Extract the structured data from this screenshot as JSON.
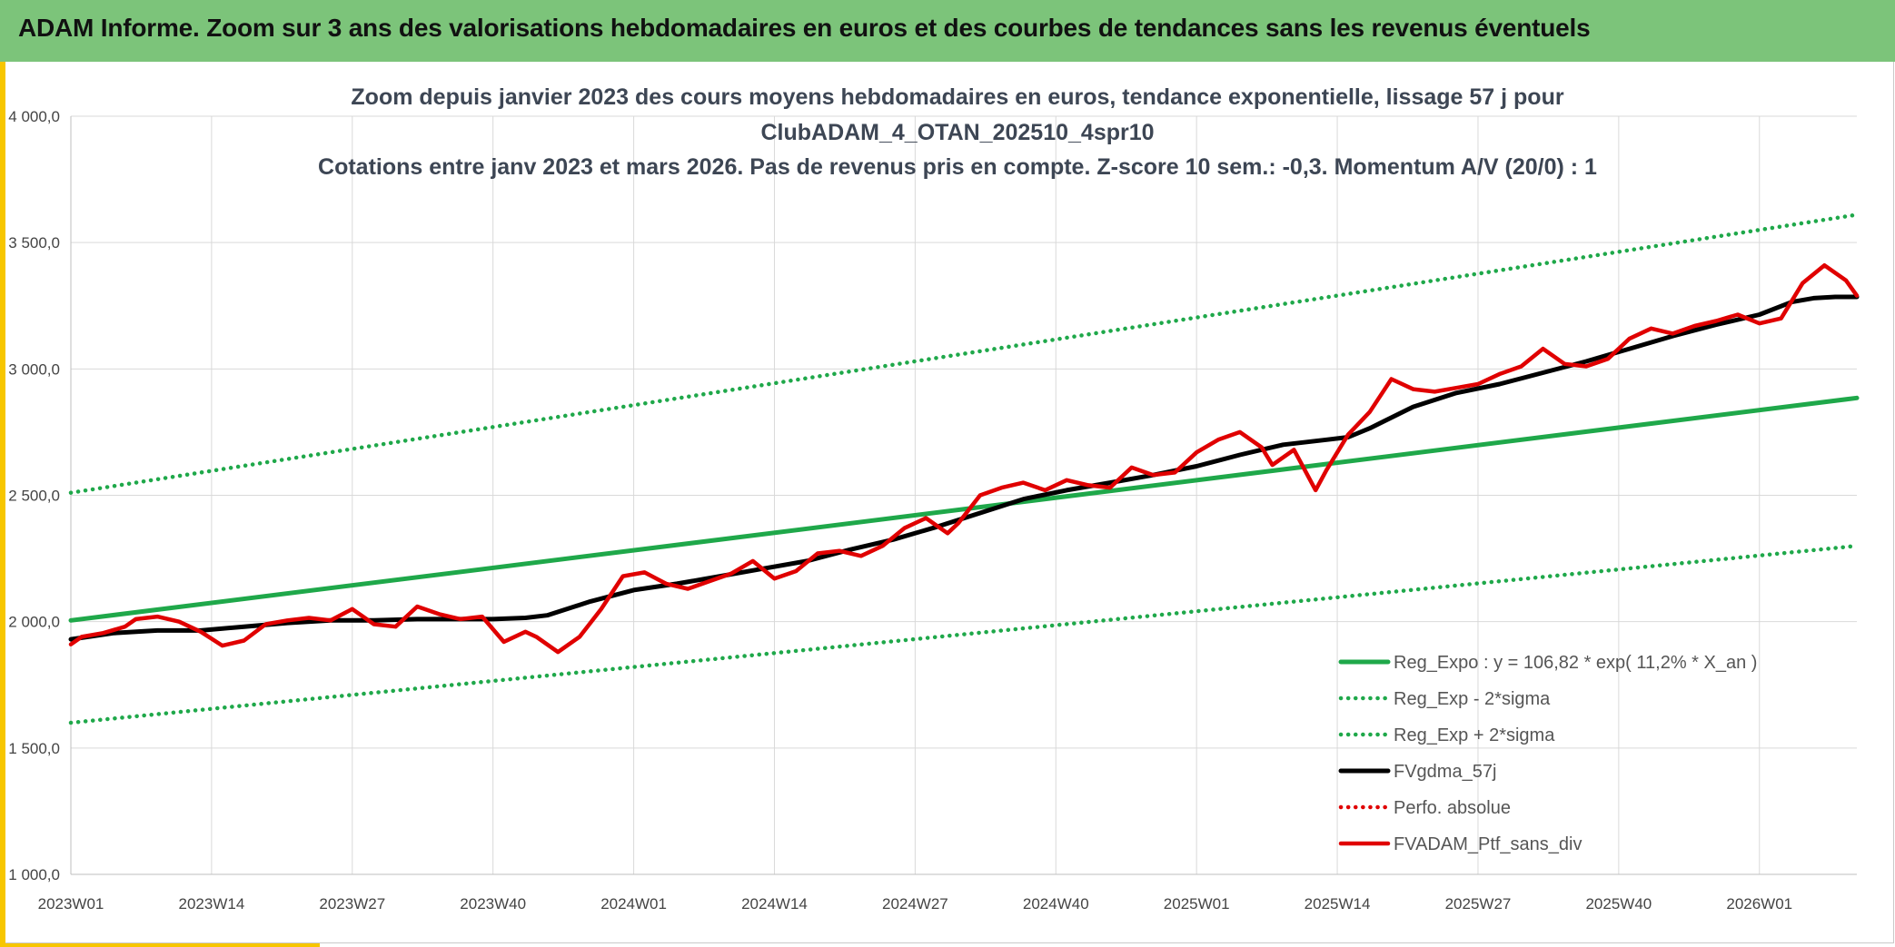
{
  "banner": {
    "title": "ADAM Informe. Zoom sur 3 ans des valorisations hebdomadaires en euros et des courbes de tendances sans les revenus éventuels"
  },
  "colors": {
    "banner_bg": "#7cc47a",
    "accent": "#f7c600",
    "trend_green": "#1fa84a",
    "portfolio_red": "#e00000",
    "moving_avg_black": "#000000",
    "grid": "#d9d9d9"
  },
  "chart_data": {
    "type": "line",
    "title_lines": [
      "Zoom depuis janvier 2023 des cours moyens hebdomadaires en euros, tendance exponentielle, lissage 57 j pour",
      "ClubADAM_4_OTAN_202510_4spr10",
      "Cotations entre janv 2023 et mars 2026. Pas de revenus pris en compte. Z-score 10 sem.: -0,3. Momentum A/V (20/0) : 1"
    ],
    "x_unit": "week index from 2023W01",
    "xlim": [
      0,
      165
    ],
    "x_ticks": [
      {
        "x": 0,
        "label": "2023W01"
      },
      {
        "x": 13,
        "label": "2023W14"
      },
      {
        "x": 26,
        "label": "2023W27"
      },
      {
        "x": 39,
        "label": "2023W40"
      },
      {
        "x": 52,
        "label": "2024W01"
      },
      {
        "x": 65,
        "label": "2024W14"
      },
      {
        "x": 78,
        "label": "2024W27"
      },
      {
        "x": 91,
        "label": "2024W40"
      },
      {
        "x": 104,
        "label": "2025W01"
      },
      {
        "x": 117,
        "label": "2025W14"
      },
      {
        "x": 130,
        "label": "2025W27"
      },
      {
        "x": 143,
        "label": "2025W40"
      },
      {
        "x": 156,
        "label": "2026W01"
      }
    ],
    "ylim": [
      1000,
      4000
    ],
    "y_ticks": [
      {
        "value": 1000,
        "label": "1 000,0"
      },
      {
        "value": 1500,
        "label": "1 500,0"
      },
      {
        "value": 2000,
        "label": "2 000,0"
      },
      {
        "value": 2500,
        "label": "2 500,0"
      },
      {
        "value": 3000,
        "label": "3 000,0"
      },
      {
        "value": 3500,
        "label": "3 500,0"
      },
      {
        "value": 4000,
        "label": "4 000,0"
      }
    ],
    "grid": true,
    "legend_position": "bottom-right",
    "series": [
      {
        "name": "Reg_Expo : y = 106,82 * exp( 11,2% *  X_an )",
        "style": "solid",
        "color": "#1fa84a",
        "x": [
          0,
          165
        ],
        "values": [
          2005,
          2885
        ]
      },
      {
        "name": "Reg_Exp - 2*sigma",
        "style": "dotted",
        "color": "#1fa84a",
        "x": [
          0,
          165
        ],
        "values": [
          1600,
          2300
        ]
      },
      {
        "name": "Reg_Exp + 2*sigma",
        "style": "dotted",
        "color": "#1fa84a",
        "x": [
          0,
          165
        ],
        "values": [
          2510,
          3610
        ]
      },
      {
        "name": "FVgdma_57j",
        "style": "solid",
        "color": "#000000",
        "x": [
          0,
          4,
          8,
          12,
          16,
          20,
          24,
          28,
          32,
          36,
          39,
          42,
          44,
          48,
          52,
          56,
          60,
          64,
          68,
          72,
          76,
          80,
          84,
          88,
          92,
          96,
          100,
          104,
          108,
          112,
          116,
          118,
          120,
          124,
          128,
          132,
          136,
          140,
          144,
          148,
          152,
          156,
          159,
          161,
          163,
          165
        ],
        "values": [
          1930,
          1955,
          1965,
          1965,
          1980,
          1995,
          2005,
          2005,
          2010,
          2010,
          2010,
          2015,
          2025,
          2080,
          2125,
          2150,
          2180,
          2210,
          2240,
          2285,
          2325,
          2375,
          2430,
          2485,
          2520,
          2550,
          2580,
          2615,
          2660,
          2700,
          2720,
          2730,
          2765,
          2850,
          2905,
          2940,
          2985,
          3030,
          3080,
          3130,
          3175,
          3215,
          3265,
          3280,
          3285,
          3285
        ]
      },
      {
        "name": "Perfo. absolue",
        "style": "dotted",
        "color": "#e00000",
        "x": [],
        "values": []
      },
      {
        "name": "FVADAM_Ptf_sans_div",
        "style": "solid",
        "color": "#e00000",
        "x": [
          0,
          1,
          3,
          5,
          6,
          8,
          10,
          12,
          14,
          16,
          18,
          20,
          22,
          24,
          26,
          28,
          30,
          32,
          34,
          36,
          38,
          40,
          42,
          43,
          45,
          47,
          49,
          51,
          53,
          55,
          57,
          59,
          61,
          63,
          65,
          67,
          69,
          71,
          73,
          75,
          77,
          79,
          81,
          82,
          84,
          86,
          88,
          90,
          92,
          94,
          96,
          98,
          100,
          102,
          104,
          106,
          108,
          110,
          111,
          113,
          115,
          116,
          118,
          120,
          122,
          124,
          126,
          128,
          130,
          132,
          134,
          136,
          138,
          140,
          142,
          144,
          146,
          148,
          150,
          152,
          154,
          156,
          158,
          160,
          162,
          164,
          165
        ],
        "values": [
          1910,
          1940,
          1955,
          1980,
          2010,
          2020,
          2000,
          1960,
          1905,
          1925,
          1990,
          2005,
          2015,
          2005,
          2050,
          1990,
          1980,
          2060,
          2030,
          2010,
          2020,
          1920,
          1960,
          1940,
          1880,
          1940,
          2050,
          2180,
          2195,
          2150,
          2130,
          2160,
          2190,
          2240,
          2170,
          2200,
          2270,
          2280,
          2260,
          2300,
          2370,
          2410,
          2350,
          2390,
          2500,
          2530,
          2550,
          2520,
          2560,
          2540,
          2530,
          2610,
          2580,
          2590,
          2670,
          2720,
          2750,
          2690,
          2620,
          2680,
          2520,
          2600,
          2740,
          2830,
          2960,
          2920,
          2910,
          2925,
          2940,
          2980,
          3010,
          3080,
          3020,
          3010,
          3040,
          3120,
          3160,
          3140,
          3170,
          3190,
          3215,
          3180,
          3200,
          3340,
          3410,
          3350,
          3290
        ]
      }
    ]
  }
}
